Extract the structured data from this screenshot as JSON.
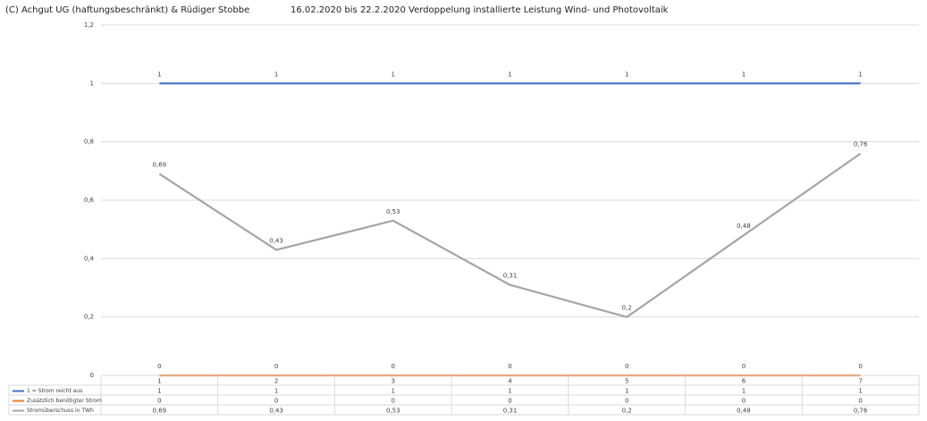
{
  "chart_data": {
    "type": "line",
    "credit": "(C) Achgut UG (haftungsbeschränkt) & Rüdiger Stobbe",
    "title": "16.02.2020 bis 22.2.2020  Verdoppelung installierte Leistung Wind- und Photovoltaik",
    "categories": [
      "1",
      "2",
      "3",
      "4",
      "5",
      "6",
      "7"
    ],
    "series": [
      {
        "name": "1 = Strom reicht aus",
        "color": "#4472c4",
        "values": [
          1,
          1,
          1,
          1,
          1,
          1,
          1
        ]
      },
      {
        "name": "Zusätzlich benötigter Strom",
        "color": "#ed7d31",
        "values": [
          0,
          0,
          0,
          0,
          0,
          0,
          0
        ]
      },
      {
        "name": "Stromüberschuss in TWh",
        "color": "#a5a5a5",
        "values": [
          0.69,
          0.43,
          0.53,
          0.31,
          0.2,
          0.48,
          0.76
        ],
        "value_labels": [
          "0,69",
          "0,43",
          "0,53",
          "0,31",
          "0,2",
          "0,48",
          "0,76"
        ]
      }
    ],
    "ylim": [
      0,
      1.2
    ],
    "yticks": [
      0,
      {
        "value": 0.2,
        "label": "0,2"
      },
      {
        "value": 0.4,
        "label": "0,4"
      },
      {
        "value": 0.6,
        "label": "0,6"
      },
      {
        "value": 0.8,
        "label": "0,8"
      },
      1,
      {
        "value": 1.2,
        "label": "1,2"
      }
    ],
    "grid": true,
    "data_table": true
  }
}
